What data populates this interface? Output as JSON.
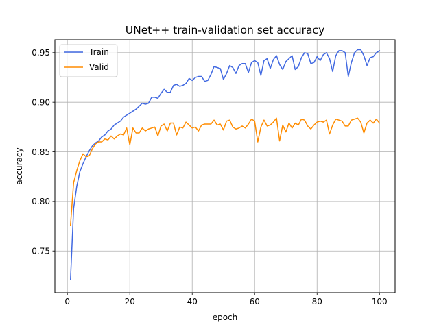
{
  "chart_data": {
    "type": "line",
    "title": "UNet++ train-validation set accuracy",
    "xlabel": "epoch",
    "ylabel": "accuracy",
    "xlim": [
      -4,
      105
    ],
    "ylim": [
      0.708,
      0.963
    ],
    "xticks": [
      0,
      20,
      40,
      60,
      80,
      100
    ],
    "xtick_labels": [
      "0",
      "20",
      "40",
      "60",
      "80",
      "100"
    ],
    "yticks": [
      0.75,
      0.8,
      0.85,
      0.9,
      0.95
    ],
    "ytick_labels": [
      "0.75",
      "0.80",
      "0.85",
      "0.90",
      "0.95"
    ],
    "grid": true,
    "legend_position": "upper-left",
    "x": [
      1,
      2,
      3,
      4,
      5,
      6,
      7,
      8,
      9,
      10,
      11,
      12,
      13,
      14,
      15,
      16,
      17,
      18,
      19,
      20,
      21,
      22,
      23,
      24,
      25,
      26,
      27,
      28,
      29,
      30,
      31,
      32,
      33,
      34,
      35,
      36,
      37,
      38,
      39,
      40,
      41,
      42,
      43,
      44,
      45,
      46,
      47,
      48,
      49,
      50,
      51,
      52,
      53,
      54,
      55,
      56,
      57,
      58,
      59,
      60,
      61,
      62,
      63,
      64,
      65,
      66,
      67,
      68,
      69,
      70,
      71,
      72,
      73,
      74,
      75,
      76,
      77,
      78,
      79,
      80,
      81,
      82,
      83,
      84,
      85,
      86,
      87,
      88,
      89,
      90,
      91,
      92,
      93,
      94,
      95,
      96,
      97,
      98,
      99,
      100
    ],
    "series": [
      {
        "name": "Train",
        "color": "#4169e1",
        "values": [
          0.721,
          0.793,
          0.815,
          0.83,
          0.838,
          0.845,
          0.851,
          0.856,
          0.859,
          0.861,
          0.865,
          0.867,
          0.871,
          0.873,
          0.877,
          0.879,
          0.881,
          0.885,
          0.887,
          0.889,
          0.891,
          0.893,
          0.896,
          0.899,
          0.898,
          0.899,
          0.905,
          0.905,
          0.904,
          0.909,
          0.913,
          0.91,
          0.91,
          0.917,
          0.918,
          0.916,
          0.917,
          0.919,
          0.924,
          0.922,
          0.925,
          0.926,
          0.926,
          0.921,
          0.922,
          0.928,
          0.936,
          0.935,
          0.934,
          0.923,
          0.929,
          0.937,
          0.935,
          0.929,
          0.937,
          0.939,
          0.939,
          0.93,
          0.94,
          0.942,
          0.94,
          0.927,
          0.942,
          0.944,
          0.934,
          0.943,
          0.947,
          0.938,
          0.933,
          0.941,
          0.944,
          0.947,
          0.933,
          0.936,
          0.945,
          0.95,
          0.949,
          0.939,
          0.94,
          0.946,
          0.942,
          0.948,
          0.95,
          0.944,
          0.931,
          0.947,
          0.952,
          0.952,
          0.95,
          0.926,
          0.94,
          0.95,
          0.953,
          0.953,
          0.947,
          0.937,
          0.945,
          0.946,
          0.95,
          0.952
        ]
      },
      {
        "name": "Valid",
        "color": "#ff8c00",
        "values": [
          0.776,
          0.819,
          0.831,
          0.841,
          0.848,
          0.845,
          0.846,
          0.853,
          0.858,
          0.86,
          0.86,
          0.863,
          0.862,
          0.866,
          0.863,
          0.866,
          0.868,
          0.867,
          0.874,
          0.857,
          0.874,
          0.869,
          0.869,
          0.874,
          0.871,
          0.873,
          0.874,
          0.875,
          0.866,
          0.876,
          0.878,
          0.871,
          0.879,
          0.879,
          0.867,
          0.875,
          0.874,
          0.88,
          0.877,
          0.874,
          0.875,
          0.871,
          0.877,
          0.878,
          0.878,
          0.878,
          0.882,
          0.877,
          0.878,
          0.872,
          0.881,
          0.882,
          0.875,
          0.873,
          0.874,
          0.876,
          0.874,
          0.878,
          0.883,
          0.881,
          0.86,
          0.875,
          0.882,
          0.876,
          0.877,
          0.88,
          0.884,
          0.861,
          0.877,
          0.87,
          0.879,
          0.874,
          0.879,
          0.877,
          0.883,
          0.882,
          0.876,
          0.873,
          0.877,
          0.88,
          0.881,
          0.88,
          0.882,
          0.868,
          0.877,
          0.883,
          0.882,
          0.881,
          0.876,
          0.876,
          0.882,
          0.883,
          0.884,
          0.88,
          0.869,
          0.879,
          0.882,
          0.879,
          0.883,
          0.879
        ]
      }
    ]
  }
}
